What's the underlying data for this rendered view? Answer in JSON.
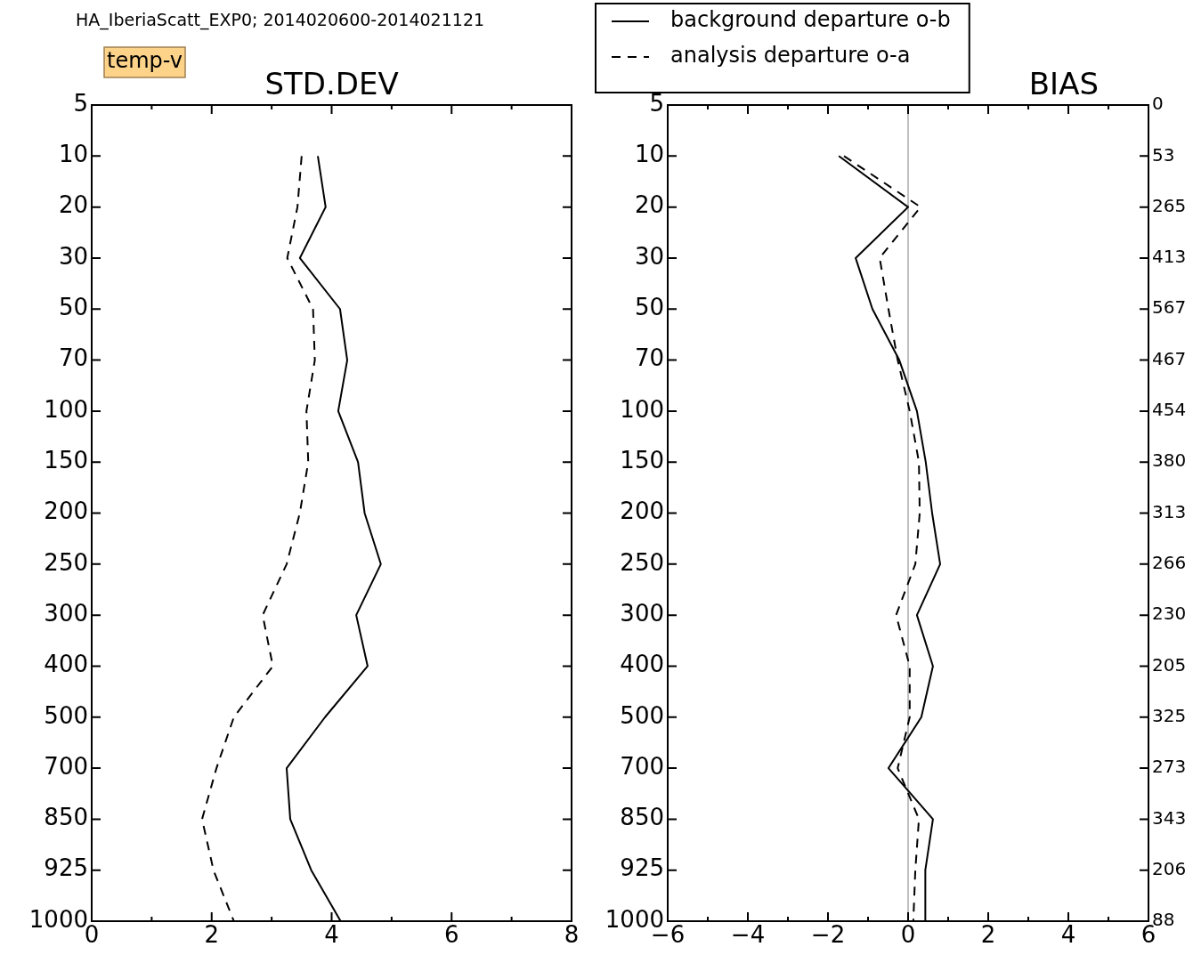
{
  "chart_data": [
    {
      "type": "line",
      "orientation": "horizontal",
      "title": "STD.DEV",
      "categories": [
        "5",
        "10",
        "20",
        "30",
        "50",
        "70",
        "100",
        "150",
        "200",
        "250",
        "300",
        "400",
        "500",
        "700",
        "850",
        "925",
        "1000"
      ],
      "xlim": [
        0,
        8
      ],
      "xticks": [
        0,
        {
          "value": 1,
          "label": null
        },
        2,
        {
          "value": 3,
          "label": null
        },
        4,
        {
          "value": 5,
          "label": null
        },
        6,
        {
          "value": 7,
          "label": null
        },
        8
      ],
      "grid": false,
      "legend": false,
      "annotations": [
        "HA_IberiaScatt_EXP0; 2014020600-2014021121",
        "temp-v"
      ],
      "series": [
        {
          "color": "#000000",
          "line_style": "solid",
          "values": [
            null,
            3.77,
            3.9,
            3.47,
            4.14,
            4.26,
            4.11,
            4.44,
            4.55,
            4.82,
            4.41,
            4.6,
            3.89,
            3.25,
            3.31,
            3.66,
            4.15
          ]
        },
        {
          "color": "#000000",
          "line_style": "dashed",
          "values": [
            null,
            3.5,
            3.43,
            3.26,
            3.69,
            3.72,
            3.58,
            3.61,
            3.47,
            3.25,
            2.85,
            3.02,
            2.37,
            2.08,
            1.84,
            2.03,
            2.37
          ]
        }
      ]
    },
    {
      "type": "line",
      "orientation": "horizontal",
      "title": "BIAS",
      "categories": [
        "5",
        "10",
        "20",
        "30",
        "50",
        "70",
        "100",
        "150",
        "200",
        "250",
        "300",
        "400",
        "500",
        "700",
        "850",
        "925",
        "1000"
      ],
      "y2_categories": [
        "0",
        "53",
        "265",
        "413",
        "567",
        "467",
        "454",
        "380",
        "313",
        "266",
        "230",
        "205",
        "325",
        "273",
        "343",
        "206",
        "88"
      ],
      "xlim": [
        -6,
        6
      ],
      "xticks": [
        {
          "value": -6,
          "label": "−6"
        },
        {
          "value": -5,
          "label": null
        },
        {
          "value": -4,
          "label": "−4"
        },
        {
          "value": -3,
          "label": null
        },
        {
          "value": -2,
          "label": "−2"
        },
        {
          "value": -1,
          "label": null
        },
        0,
        {
          "value": 1,
          "label": null
        },
        2,
        {
          "value": 3,
          "label": null
        },
        4,
        {
          "value": 5,
          "label": null
        },
        6
      ],
      "grid": false,
      "legend": "top",
      "ref_lines": [
        {
          "axis": "x",
          "value": 0,
          "color": "#c0c0c0"
        }
      ],
      "series": [
        {
          "name": "background departure o-b",
          "color": "#000000",
          "line_style": "solid",
          "values": [
            null,
            -1.73,
            0.0,
            -1.31,
            -0.89,
            -0.22,
            0.22,
            0.44,
            0.6,
            0.8,
            0.22,
            0.62,
            0.33,
            -0.49,
            0.62,
            0.43,
            0.43
          ]
        },
        {
          "name": "analysis departure o-a",
          "color": "#000000",
          "line_style": "dashed",
          "values": [
            null,
            -1.6,
            0.31,
            -0.71,
            -0.49,
            -0.26,
            0.04,
            0.27,
            0.29,
            0.18,
            -0.3,
            0.04,
            0.04,
            -0.26,
            0.27,
            0.18,
            0.13
          ]
        }
      ]
    }
  ]
}
